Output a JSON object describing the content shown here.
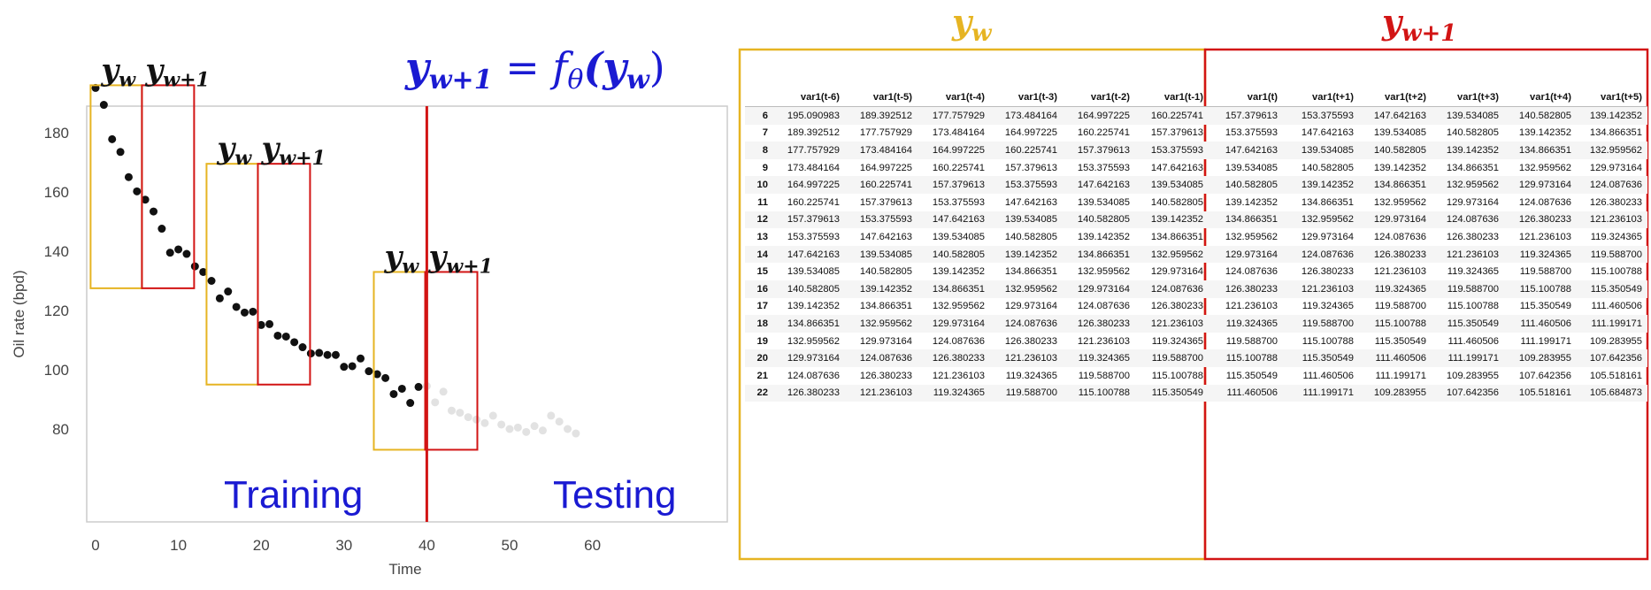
{
  "chart_data": {
    "type": "scatter",
    "xlabel": "Time",
    "ylabel": "Oil rate (bpd)",
    "xlim": [
      -3,
      62
    ],
    "ylim": [
      78,
      196
    ],
    "xticks": [
      0,
      10,
      20,
      30,
      40,
      50,
      60
    ],
    "yticks": [
      80,
      100,
      120,
      140,
      160,
      180
    ],
    "train_points": [
      [
        0,
        195.1
      ],
      [
        1,
        189.4
      ],
      [
        2,
        177.8
      ],
      [
        3,
        173.5
      ],
      [
        4,
        165.0
      ],
      [
        5,
        160.2
      ],
      [
        6,
        157.4
      ],
      [
        7,
        153.4
      ],
      [
        8,
        147.6
      ],
      [
        9,
        139.5
      ],
      [
        10,
        140.6
      ],
      [
        11,
        139.1
      ],
      [
        12,
        134.9
      ],
      [
        13,
        133.0
      ],
      [
        14,
        130.0
      ],
      [
        15,
        124.1
      ],
      [
        16,
        126.4
      ],
      [
        17,
        121.2
      ],
      [
        18,
        119.3
      ],
      [
        19,
        119.6
      ],
      [
        20,
        115.1
      ],
      [
        21,
        115.4
      ],
      [
        22,
        111.5
      ],
      [
        23,
        111.2
      ],
      [
        24,
        109.3
      ],
      [
        25,
        107.6
      ],
      [
        26,
        105.5
      ],
      [
        27,
        105.7
      ],
      [
        28,
        105.0
      ],
      [
        29,
        105.0
      ],
      [
        30,
        101.0
      ],
      [
        31,
        101.2
      ],
      [
        32,
        103.8
      ],
      [
        33,
        99.5
      ],
      [
        34,
        98.5
      ],
      [
        35,
        97.2
      ],
      [
        36,
        91.8
      ],
      [
        37,
        93.6
      ],
      [
        38,
        88.8
      ],
      [
        39,
        94.2
      ]
    ],
    "test_points": [
      [
        40,
        94.5
      ],
      [
        41,
        89.0
      ],
      [
        42,
        92.6
      ],
      [
        43,
        86.2
      ],
      [
        44,
        85.5
      ],
      [
        45,
        84.0
      ],
      [
        46,
        83.2
      ],
      [
        47,
        82.0
      ],
      [
        48,
        84.5
      ],
      [
        49,
        81.5
      ],
      [
        50,
        80.0
      ],
      [
        51,
        80.5
      ],
      [
        52,
        79.0
      ],
      [
        53,
        81.0
      ],
      [
        54,
        79.5
      ],
      [
        55,
        84.5
      ],
      [
        56,
        82.5
      ],
      [
        57,
        80.0
      ],
      [
        58,
        78.5
      ]
    ],
    "split_x": 40,
    "window_pairs": [
      {
        "yw": [
          -0.6,
          5.6,
          196,
          127.5
        ],
        "yw1": [
          5.6,
          11.9,
          196,
          127.5
        ]
      },
      {
        "yw": [
          13.4,
          19.6,
          169.5,
          95
        ],
        "yw1": [
          19.6,
          25.9,
          169.5,
          95
        ]
      },
      {
        "yw": [
          33.6,
          39.8,
          133,
          73
        ],
        "yw1": [
          39.8,
          46.1,
          133,
          73
        ]
      }
    ]
  },
  "labels": {
    "yw": "y",
    "yw_sub": "w",
    "yw1": "y",
    "yw1_sub": "w+1",
    "equation": "y",
    "equation_sub": "w+1",
    "equation_mid": " = f",
    "equation_theta": "θ",
    "equation_arg": "(y",
    "equation_arg_sub": "w",
    "equation_end": ")",
    "training": "Training",
    "testing": "Testing"
  },
  "colors": {
    "yellow": "#e6b422",
    "red": "#d21414",
    "blue": "#1a1ad2"
  },
  "table": {
    "headers": [
      "var1(t-6)",
      "var1(t-5)",
      "var1(t-4)",
      "var1(t-3)",
      "var1(t-2)",
      "var1(t-1)",
      "var1(t)",
      "var1(t+1)",
      "var1(t+2)",
      "var1(t+3)",
      "var1(t+4)",
      "var1(t+5)"
    ],
    "rows": [
      {
        "idx": "6",
        "vals": [
          "195.090983",
          "189.392512",
          "177.757929",
          "173.484164",
          "164.997225",
          "160.225741",
          "157.379613",
          "153.375593",
          "147.642163",
          "139.534085",
          "140.582805",
          "139.142352"
        ]
      },
      {
        "idx": "7",
        "vals": [
          "189.392512",
          "177.757929",
          "173.484164",
          "164.997225",
          "160.225741",
          "157.379613",
          "153.375593",
          "147.642163",
          "139.534085",
          "140.582805",
          "139.142352",
          "134.866351"
        ]
      },
      {
        "idx": "8",
        "vals": [
          "177.757929",
          "173.484164",
          "164.997225",
          "160.225741",
          "157.379613",
          "153.375593",
          "147.642163",
          "139.534085",
          "140.582805",
          "139.142352",
          "134.866351",
          "132.959562"
        ]
      },
      {
        "idx": "9",
        "vals": [
          "173.484164",
          "164.997225",
          "160.225741",
          "157.379613",
          "153.375593",
          "147.642163",
          "139.534085",
          "140.582805",
          "139.142352",
          "134.866351",
          "132.959562",
          "129.973164"
        ]
      },
      {
        "idx": "10",
        "vals": [
          "164.997225",
          "160.225741",
          "157.379613",
          "153.375593",
          "147.642163",
          "139.534085",
          "140.582805",
          "139.142352",
          "134.866351",
          "132.959562",
          "129.973164",
          "124.087636"
        ]
      },
      {
        "idx": "11",
        "vals": [
          "160.225741",
          "157.379613",
          "153.375593",
          "147.642163",
          "139.534085",
          "140.582805",
          "139.142352",
          "134.866351",
          "132.959562",
          "129.973164",
          "124.087636",
          "126.380233"
        ]
      },
      {
        "idx": "12",
        "vals": [
          "157.379613",
          "153.375593",
          "147.642163",
          "139.534085",
          "140.582805",
          "139.142352",
          "134.866351",
          "132.959562",
          "129.973164",
          "124.087636",
          "126.380233",
          "121.236103"
        ]
      },
      {
        "idx": "13",
        "vals": [
          "153.375593",
          "147.642163",
          "139.534085",
          "140.582805",
          "139.142352",
          "134.866351",
          "132.959562",
          "129.973164",
          "124.087636",
          "126.380233",
          "121.236103",
          "119.324365"
        ]
      },
      {
        "idx": "14",
        "vals": [
          "147.642163",
          "139.534085",
          "140.582805",
          "139.142352",
          "134.866351",
          "132.959562",
          "129.973164",
          "124.087636",
          "126.380233",
          "121.236103",
          "119.324365",
          "119.588700"
        ]
      },
      {
        "idx": "15",
        "vals": [
          "139.534085",
          "140.582805",
          "139.142352",
          "134.866351",
          "132.959562",
          "129.973164",
          "124.087636",
          "126.380233",
          "121.236103",
          "119.324365",
          "119.588700",
          "115.100788"
        ]
      },
      {
        "idx": "16",
        "vals": [
          "140.582805",
          "139.142352",
          "134.866351",
          "132.959562",
          "129.973164",
          "124.087636",
          "126.380233",
          "121.236103",
          "119.324365",
          "119.588700",
          "115.100788",
          "115.350549"
        ]
      },
      {
        "idx": "17",
        "vals": [
          "139.142352",
          "134.866351",
          "132.959562",
          "129.973164",
          "124.087636",
          "126.380233",
          "121.236103",
          "119.324365",
          "119.588700",
          "115.100788",
          "115.350549",
          "111.460506"
        ]
      },
      {
        "idx": "18",
        "vals": [
          "134.866351",
          "132.959562",
          "129.973164",
          "124.087636",
          "126.380233",
          "121.236103",
          "119.324365",
          "119.588700",
          "115.100788",
          "115.350549",
          "111.460506",
          "111.199171"
        ]
      },
      {
        "idx": "19",
        "vals": [
          "132.959562",
          "129.973164",
          "124.087636",
          "126.380233",
          "121.236103",
          "119.324365",
          "119.588700",
          "115.100788",
          "115.350549",
          "111.460506",
          "111.199171",
          "109.283955"
        ]
      },
      {
        "idx": "20",
        "vals": [
          "129.973164",
          "124.087636",
          "126.380233",
          "121.236103",
          "119.324365",
          "119.588700",
          "115.100788",
          "115.350549",
          "111.460506",
          "111.199171",
          "109.283955",
          "107.642356"
        ]
      },
      {
        "idx": "21",
        "vals": [
          "124.087636",
          "126.380233",
          "121.236103",
          "119.324365",
          "119.588700",
          "115.100788",
          "115.350549",
          "111.460506",
          "111.199171",
          "109.283955",
          "107.642356",
          "105.518161"
        ]
      },
      {
        "idx": "22",
        "vals": [
          "126.380233",
          "121.236103",
          "119.324365",
          "119.588700",
          "115.100788",
          "115.350549",
          "111.460506",
          "111.199171",
          "109.283955",
          "107.642356",
          "105.518161",
          "105.684873"
        ]
      }
    ]
  }
}
